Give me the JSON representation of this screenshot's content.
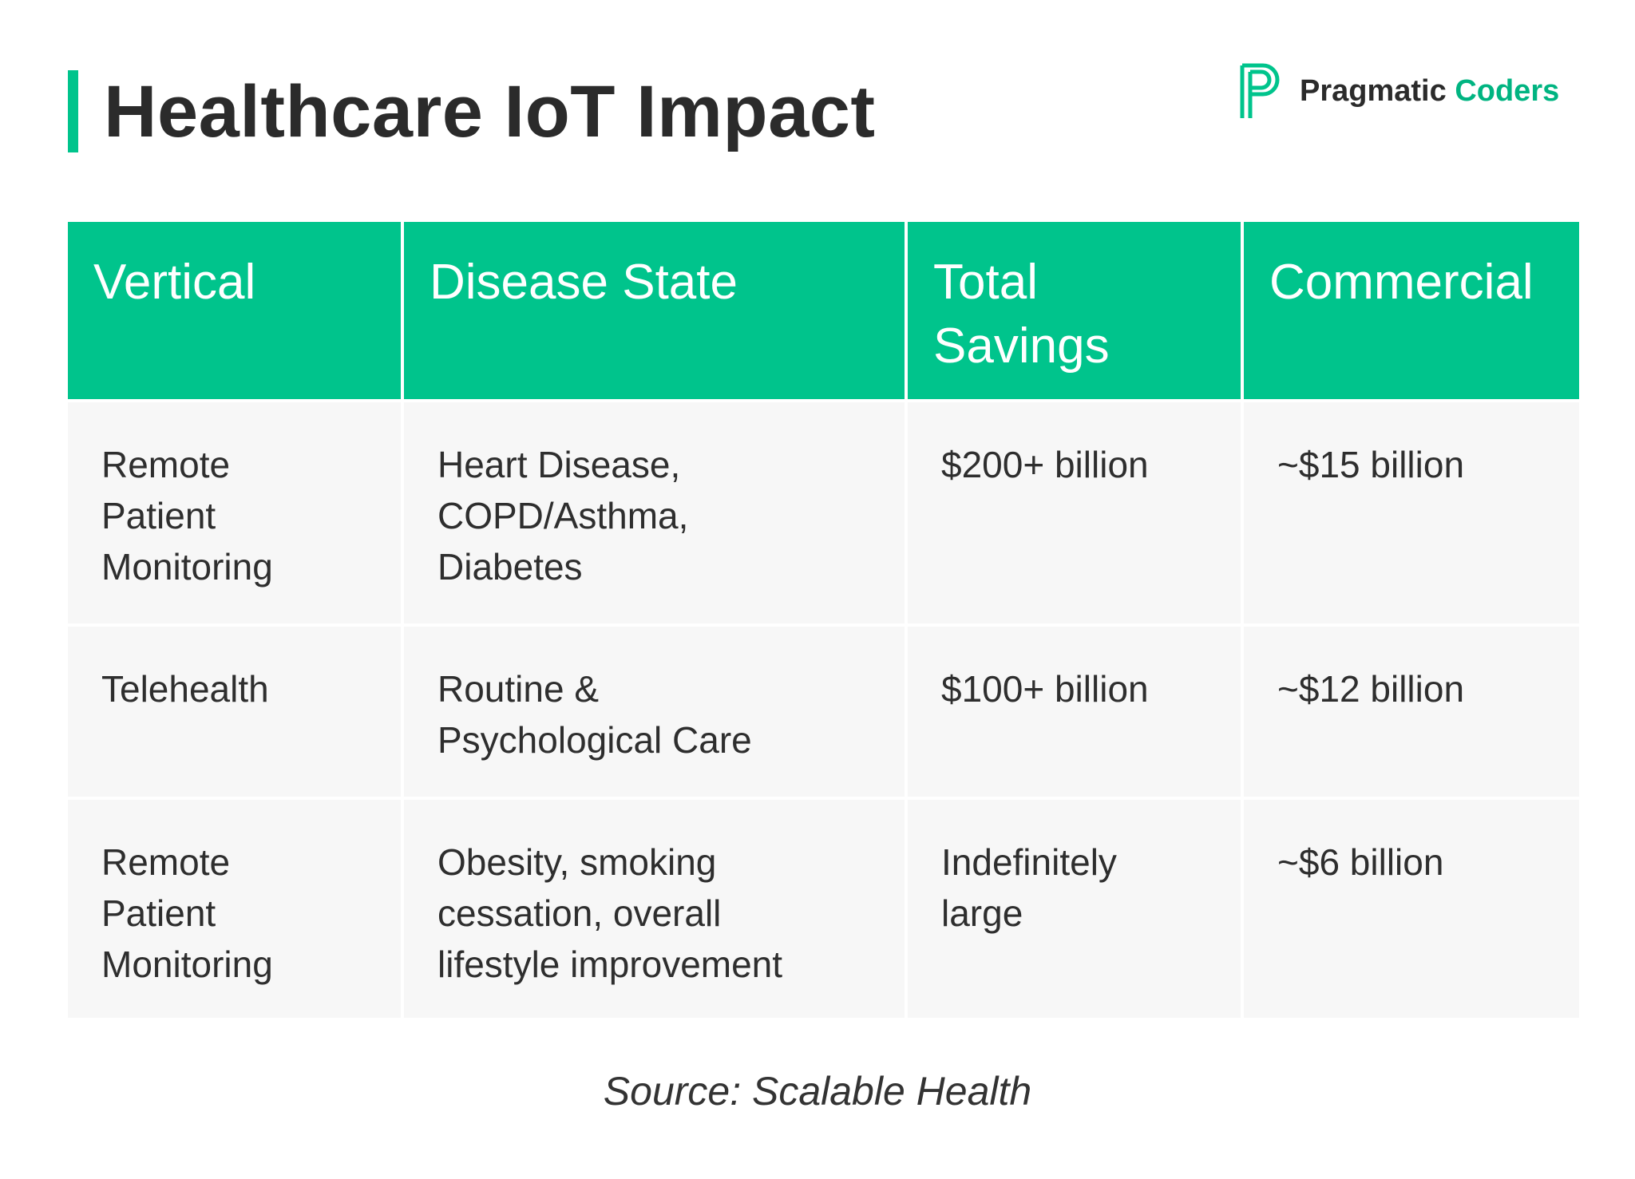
{
  "title": "Healthcare IoT Impact",
  "brand": {
    "name_part1": "Pragmatic",
    "name_part2": "Coders",
    "logo_icon": "pragmatic-coders-p-logo",
    "accent_color": "#00c48c"
  },
  "table": {
    "headers": [
      "Vertical",
      "Disease State",
      "Total\nSavings",
      "Commercial"
    ],
    "rows": [
      [
        "Remote\nPatient\nMonitoring",
        "Heart Disease,\nCOPD/Asthma,\nDiabetes",
        "$200+ billion",
        "~$15 billion"
      ],
      [
        "Telehealth",
        "Routine &\nPsychological Care",
        "$100+ billion",
        "~$12 billion"
      ],
      [
        "Remote\nPatient\nMonitoring",
        "Obesity, smoking\ncessation, overall\nlifestyle improvement",
        "Indefinitely\nlarge",
        "~$6 billion"
      ]
    ]
  },
  "source": "Source: Scalable Health"
}
